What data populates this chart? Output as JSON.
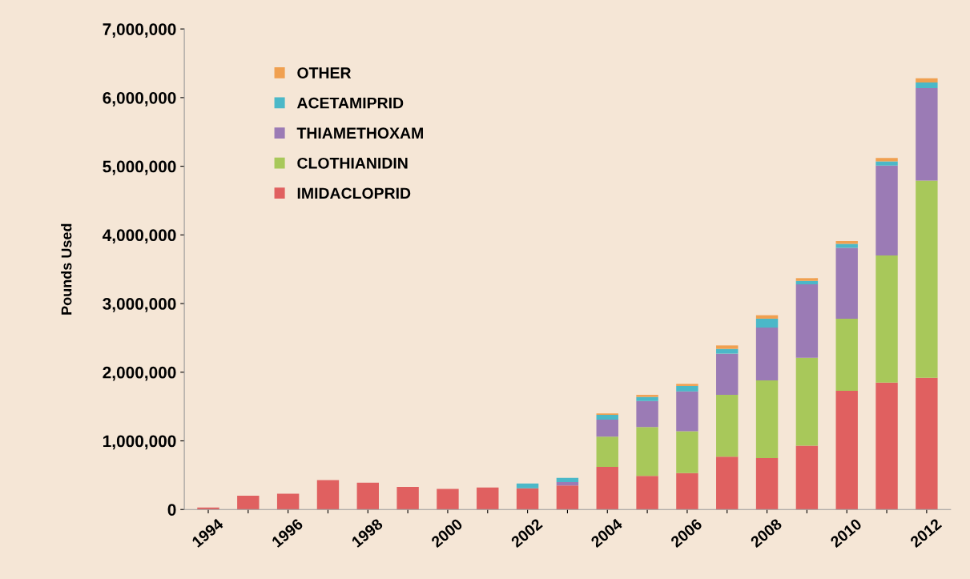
{
  "chart_data": {
    "type": "bar",
    "stacked": true,
    "ylabel": "Pounds Used",
    "categories": [
      "1994",
      null,
      "1996",
      null,
      "1998",
      null,
      "2000",
      null,
      "2002",
      null,
      "2004",
      null,
      "2006",
      null,
      "2008",
      null,
      "2010",
      null,
      "2012"
    ],
    "series": [
      {
        "name": "IMIDACLOPRID",
        "color": "#e06060",
        "values": [
          30000,
          200000,
          230000,
          430000,
          390000,
          330000,
          300000,
          320000,
          310000,
          350000,
          620000,
          490000,
          530000,
          770000,
          750000,
          930000,
          1730000,
          1850000,
          1920000
        ]
      },
      {
        "name": "CLOTHIANIDIN",
        "color": "#a8c85a",
        "values": [
          0,
          0,
          0,
          0,
          0,
          0,
          0,
          0,
          0,
          0,
          440000,
          710000,
          610000,
          900000,
          1130000,
          1280000,
          1050000,
          1850000,
          2870000
        ]
      },
      {
        "name": "THIAMETHOXAM",
        "color": "#9b7bb5",
        "values": [
          0,
          0,
          0,
          0,
          0,
          0,
          0,
          0,
          0,
          50000,
          250000,
          380000,
          580000,
          600000,
          770000,
          1070000,
          1030000,
          1310000,
          1350000
        ]
      },
      {
        "name": "ACETAMIPRID",
        "color": "#4bb8c8",
        "values": [
          0,
          0,
          0,
          0,
          0,
          0,
          0,
          0,
          70000,
          60000,
          70000,
          60000,
          80000,
          70000,
          130000,
          50000,
          60000,
          60000,
          80000
        ]
      },
      {
        "name": "OTHER",
        "color": "#f0a050",
        "values": [
          0,
          0,
          0,
          0,
          0,
          0,
          0,
          0,
          0,
          0,
          20000,
          30000,
          30000,
          50000,
          50000,
          40000,
          40000,
          50000,
          60000
        ]
      }
    ],
    "ylim": [
      0,
      7000000
    ],
    "yticks": [
      {
        "value": 0,
        "label": "0"
      },
      {
        "value": 1000000,
        "label": "1,000,000"
      },
      {
        "value": 2000000,
        "label": "2,000,000"
      },
      {
        "value": 3000000,
        "label": "3,000,000"
      },
      {
        "value": 4000000,
        "label": "4,000,000"
      },
      {
        "value": 5000000,
        "label": "5,000,000"
      },
      {
        "value": 6000000,
        "label": "6,000,000"
      },
      {
        "value": 7000000,
        "label": "7,000,000"
      }
    ],
    "legend": "top left",
    "grid": false
  }
}
